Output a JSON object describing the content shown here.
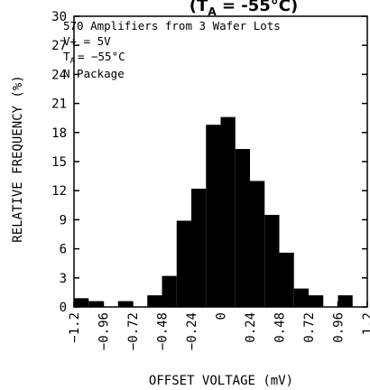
{
  "chart_data": {
    "type": "bar",
    "title_prefix": "(T",
    "title_sub": "A",
    "title_rest": " = -55°C)",
    "xlabel": "OFFSET VOLTAGE (mV)",
    "ylabel": "RELATIVE FREQUENCY (%)",
    "annotations": [
      "570 Amplifiers from 3 Wafer Lots",
      "V+ = 5V",
      "= −55°C",
      "N Package"
    ],
    "annotation_ta": "T",
    "annotation_ta_sub": "A",
    "xlim": [
      -1.2,
      1.2
    ],
    "ylim": [
      0,
      30
    ],
    "x_tick_labels": [
      "−1.2",
      "−0.96",
      "−0.72",
      "−0.48",
      "−0.24",
      "0",
      "0.24",
      "0.48",
      "0.72",
      "0.96",
      "1.2"
    ],
    "y_tick_labels": [
      "0",
      "3",
      "6",
      "9",
      "12",
      "15",
      "18",
      "21",
      "24",
      "27",
      "30"
    ],
    "bin_width": 0.12,
    "bin_starts": [
      -1.2,
      -1.08,
      -0.96,
      -0.84,
      -0.72,
      -0.6,
      -0.48,
      -0.36,
      -0.24,
      -0.12,
      0.0,
      0.12,
      0.24,
      0.36,
      0.48,
      0.6,
      0.72,
      0.84,
      0.96,
      1.08
    ],
    "values": [
      0.9,
      0.6,
      0.0,
      0.6,
      0.0,
      1.2,
      3.2,
      8.9,
      12.2,
      18.8,
      19.6,
      16.3,
      13.0,
      9.5,
      5.6,
      1.9,
      1.2,
      0.0,
      1.2,
      0.0
    ],
    "grid": false,
    "color": "#000000"
  }
}
